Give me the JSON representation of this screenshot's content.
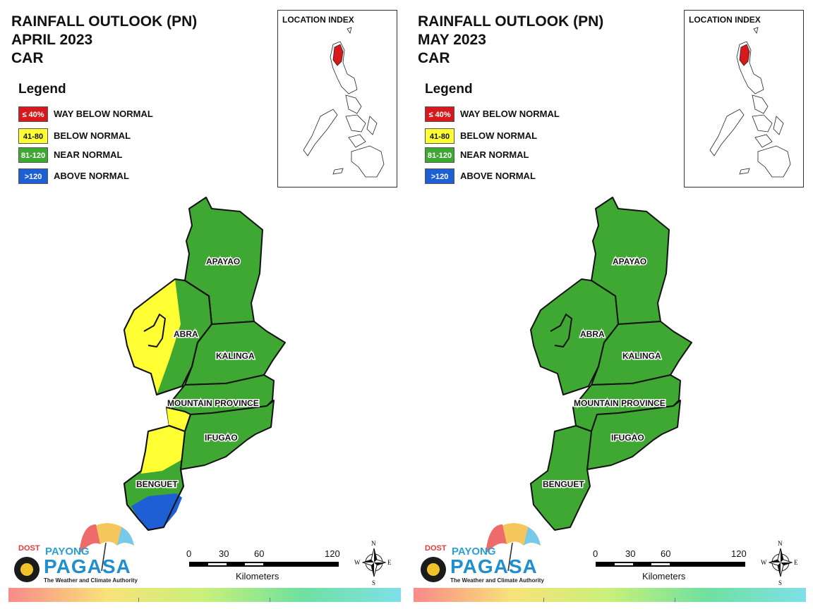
{
  "panels": [
    {
      "title_lines": [
        "RAINFALL OUTLOOK (PN)",
        "APRIL 2023",
        "CAR"
      ],
      "legend": {
        "title": "Legend",
        "items": [
          {
            "code": "≤ 40%",
            "label": "WAY BELOW NORMAL",
            "color": "#d7191c",
            "text_color": "#ffffff"
          },
          {
            "code": "41-80",
            "label": "BELOW NORMAL",
            "color": "#ffff33",
            "text_color": "#111111"
          },
          {
            "code": "81-120",
            "label": "NEAR NORMAL",
            "color": "#3fa832",
            "text_color": "#ffffff"
          },
          {
            "code": ">120",
            "label": "ABOVE NORMAL",
            "color": "#1f5fd6",
            "text_color": "#ffffff"
          }
        ]
      },
      "location_index": {
        "title": "LOCATION INDEX"
      },
      "provinces": [
        {
          "name": "APAYAO",
          "category": "NEAR NORMAL"
        },
        {
          "name": "ABRA",
          "category": "NEAR NORMAL / BELOW NORMAL"
        },
        {
          "name": "KALINGA",
          "category": "NEAR NORMAL"
        },
        {
          "name": "MOUNTAIN PROVINCE",
          "category": "NEAR NORMAL / BELOW NORMAL"
        },
        {
          "name": "IFUGAO",
          "category": "NEAR NORMAL"
        },
        {
          "name": "BENGUET",
          "category": "BELOW NORMAL / NEAR NORMAL / ABOVE NORMAL"
        }
      ],
      "scale": {
        "ticks": [
          "0",
          "30",
          "60",
          "120"
        ],
        "unit": "Kilometers"
      },
      "compass": {
        "n": "N",
        "e": "E",
        "s": "S",
        "w": "W"
      },
      "logo": {
        "dost": "DOST",
        "payong": "PAYONG",
        "pagasa": "PAGASA",
        "tagline": "The Weather and Climate Authority"
      }
    },
    {
      "title_lines": [
        "RAINFALL OUTLOOK (PN)",
        "MAY 2023",
        "CAR"
      ],
      "legend": {
        "title": "Legend",
        "items": [
          {
            "code": "≤ 40%",
            "label": "WAY BELOW NORMAL",
            "color": "#d7191c",
            "text_color": "#ffffff"
          },
          {
            "code": "41-80",
            "label": "BELOW NORMAL",
            "color": "#ffff33",
            "text_color": "#111111"
          },
          {
            "code": "81-120",
            "label": "NEAR NORMAL",
            "color": "#3fa832",
            "text_color": "#ffffff"
          },
          {
            "code": ">120",
            "label": "ABOVE NORMAL",
            "color": "#1f5fd6",
            "text_color": "#ffffff"
          }
        ]
      },
      "location_index": {
        "title": "LOCATION INDEX"
      },
      "provinces": [
        {
          "name": "APAYAO",
          "category": "NEAR NORMAL"
        },
        {
          "name": "ABRA",
          "category": "NEAR NORMAL"
        },
        {
          "name": "KALINGA",
          "category": "NEAR NORMAL"
        },
        {
          "name": "MOUNTAIN PROVINCE",
          "category": "NEAR NORMAL"
        },
        {
          "name": "IFUGAO",
          "category": "NEAR NORMAL"
        },
        {
          "name": "BENGUET",
          "category": "NEAR NORMAL"
        }
      ],
      "scale": {
        "ticks": [
          "0",
          "30",
          "60",
          "120"
        ],
        "unit": "Kilometers"
      },
      "compass": {
        "n": "N",
        "e": "E",
        "s": "S",
        "w": "W"
      },
      "logo": {
        "dost": "DOST",
        "payong": "PAYONG",
        "pagasa": "PAGASA",
        "tagline": "The Weather and Climate Authority"
      }
    }
  ],
  "colors": {
    "near_normal": "#3fa832",
    "below_normal": "#ffff33",
    "above_normal": "#1f5fd6",
    "highlight_region": "#d7191c"
  }
}
